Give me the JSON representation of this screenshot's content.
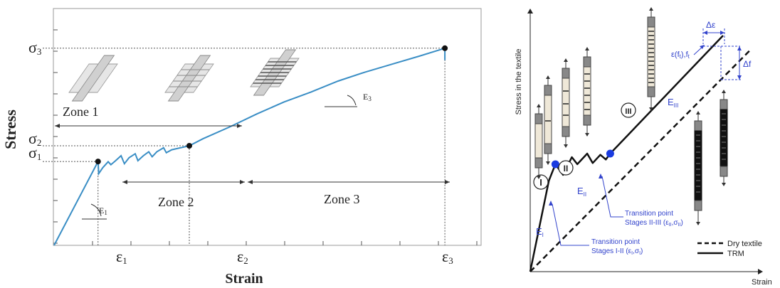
{
  "chart_data": [
    {
      "type": "line",
      "xlabel": "Strain",
      "ylabel": "Stress",
      "x_ticks": [
        {
          "main": "ε",
          "sub": "1"
        },
        {
          "main": "ε",
          "sub": "2"
        },
        {
          "main": "ε",
          "sub": "3"
        }
      ],
      "y_ticks": [
        {
          "main": "σ",
          "sub": "3"
        },
        {
          "main": "σ",
          "sub": "2"
        },
        {
          "main": "σ",
          "sub": "1"
        }
      ],
      "zones": [
        "Zone 1",
        "Zone 2",
        "Zone 3"
      ],
      "moduli": [
        {
          "main": "E",
          "sub": "1"
        },
        {
          "main": "E",
          "sub": "3"
        }
      ],
      "series": [
        {
          "color": "#3a8ec5",
          "points": [
            [
              0,
              0
            ],
            [
              0.325,
              0.421
            ],
            [
              0.33,
              0.36
            ],
            [
              0.36,
              0.39
            ],
            [
              0.4,
              0.42
            ],
            [
              0.42,
              0.405
            ],
            [
              0.455,
              0.425
            ],
            [
              0.495,
              0.45
            ],
            [
              0.52,
              0.41
            ],
            [
              0.555,
              0.44
            ],
            [
              0.6,
              0.46
            ],
            [
              0.62,
              0.425
            ],
            [
              0.66,
              0.45
            ],
            [
              0.7,
              0.47
            ],
            [
              0.725,
              0.445
            ],
            [
              0.76,
              0.47
            ],
            [
              0.81,
              0.49
            ],
            [
              0.83,
              0.465
            ],
            [
              0.87,
              0.48
            ],
            [
              1,
              0.5
            ],
            [
              1.1,
              0.535
            ],
            [
              1.3,
              0.595
            ],
            [
              1.5,
              0.66
            ],
            [
              1.7,
              0.72
            ],
            [
              1.9,
              0.77
            ],
            [
              2.1,
              0.825
            ],
            [
              2.3,
              0.87
            ],
            [
              2.5,
              0.91
            ],
            [
              2.7,
              0.95
            ],
            [
              2.89,
              0.99
            ],
            [
              2.89,
              0.93
            ]
          ]
        }
      ],
      "key_points": [
        [
          0.325,
          0.421
        ],
        [
          1,
          0.5
        ],
        [
          2.89,
          0.99
        ]
      ]
    },
    {
      "type": "line",
      "xlabel": "Strain",
      "ylabel": "Stress in the textile",
      "legend": [
        {
          "name": "Dry textile",
          "style": "dashed"
        },
        {
          "name": "TRM",
          "style": "solid"
        }
      ],
      "legend_position": "bottom-right",
      "stages": [
        "I",
        "II",
        "III"
      ],
      "moduli": [
        {
          "main": "E",
          "sub": "I"
        },
        {
          "main": "E",
          "sub": "II"
        },
        {
          "main": "E",
          "sub": "III"
        }
      ],
      "annotations": {
        "transition_1": {
          "line1": "Transition point",
          "line2": "Stages I-II (ε",
          "s1": "I",
          "mid": ",σ",
          "s2": "I",
          "end": ")"
        },
        "transition_2": {
          "line1": "Transition point",
          "line2": "Stages II-III (ε",
          "s1": "II",
          "mid": ",σ",
          "s2": "II",
          "end": ")"
        },
        "failure": {
          "a": "ε(f",
          "s1": "t",
          "b": "),f",
          "s2": "t"
        },
        "delta_eps": "Δε",
        "delta_f": "Δf"
      },
      "series": [
        {
          "name": "Dry textile",
          "points": [
            [
              0,
              0
            ],
            [
              1,
              0.935
            ]
          ]
        },
        {
          "name": "TRM",
          "points": [
            [
              0,
              0
            ],
            [
              0.085,
              0.385
            ],
            [
              0.115,
              0.455
            ],
            [
              0.15,
              0.41
            ],
            [
              0.19,
              0.485
            ],
            [
              0.215,
              0.455
            ],
            [
              0.26,
              0.5
            ],
            [
              0.285,
              0.46
            ],
            [
              0.32,
              0.495
            ],
            [
              0.345,
              0.475
            ],
            [
              0.365,
              0.5
            ],
            [
              0.88,
              1
            ]
          ]
        }
      ],
      "transition_points": [
        [
          0.115,
          0.455
        ],
        [
          0.365,
          0.5
        ]
      ]
    }
  ]
}
